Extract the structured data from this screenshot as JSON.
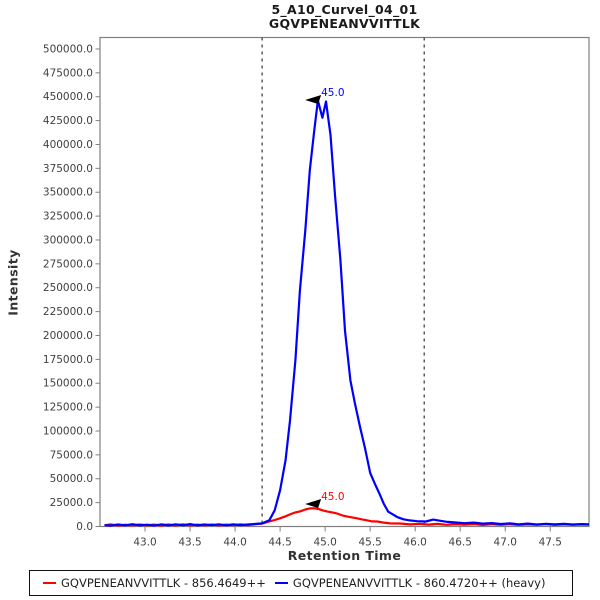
{
  "header": {
    "title_line1": "5_A10_Curvel_04_01",
    "title_line2": "GQVPENEANVVITTLK"
  },
  "chart_data": {
    "type": "line",
    "title": "5_A10_Curvel_04_01 — GQVPENEANVVITTLK",
    "xlabel": "Retention Time",
    "ylabel": "Intensity",
    "xlim": [
      42.5,
      47.93
    ],
    "ylim": [
      0,
      512000
    ],
    "grid": false,
    "legend_position": "bottom",
    "x_ticks": {
      "values": [
        43.0,
        43.5,
        44.0,
        44.5,
        45.0,
        45.5,
        46.0,
        46.5,
        47.0,
        47.5
      ],
      "labels": [
        "43.0",
        "43.5",
        "44.0",
        "44.5",
        "45.0",
        "45.5",
        "46.0",
        "46.5",
        "47.0",
        "47.5"
      ]
    },
    "y_ticks": {
      "values": [
        0,
        25000,
        50000,
        75000,
        100000,
        125000,
        150000,
        175000,
        200000,
        225000,
        250000,
        275000,
        300000,
        325000,
        350000,
        375000,
        400000,
        425000,
        450000,
        475000,
        500000
      ],
      "labels": [
        "0.0",
        "25000.0",
        "50000.0",
        "75000.0",
        "100000.0",
        "125000.0",
        "150000.0",
        "175000.0",
        "200000.0",
        "225000.0",
        "250000.0",
        "275000.0",
        "300000.0",
        "325000.0",
        "350000.0",
        "375000.0",
        "400000.0",
        "425000.0",
        "450000.0",
        "475000.0",
        "500000.0"
      ],
      "y_axis_max_label": "500000.0"
    },
    "integration_boundaries": [
      44.3,
      46.1
    ],
    "series": [
      {
        "name": "GQVPENEANVVITTLK - 856.4649++",
        "color": "#ff0000",
        "peak_label": {
          "text": "45.0",
          "rt": 45.0,
          "intensity": 32000
        },
        "points": [
          [
            42.55,
            1300
          ],
          [
            42.62,
            2200
          ],
          [
            42.7,
            1000
          ],
          [
            42.78,
            1900
          ],
          [
            42.86,
            1100
          ],
          [
            42.94,
            2100
          ],
          [
            43.02,
            1200
          ],
          [
            43.1,
            2000
          ],
          [
            43.18,
            1000
          ],
          [
            43.26,
            2100
          ],
          [
            43.34,
            1200
          ],
          [
            43.42,
            2200
          ],
          [
            43.5,
            1100
          ],
          [
            43.58,
            2000
          ],
          [
            43.66,
            1300
          ],
          [
            43.74,
            2100
          ],
          [
            43.82,
            1200
          ],
          [
            43.9,
            2000
          ],
          [
            43.98,
            1400
          ],
          [
            44.06,
            2200
          ],
          [
            44.14,
            1500
          ],
          [
            44.22,
            2400
          ],
          [
            44.3,
            3000
          ],
          [
            44.38,
            5200
          ],
          [
            44.44,
            6800
          ],
          [
            44.5,
            8600
          ],
          [
            44.56,
            10700
          ],
          [
            44.61,
            12700
          ],
          [
            44.67,
            14800
          ],
          [
            44.72,
            15800
          ],
          [
            44.78,
            17800
          ],
          [
            44.83,
            18900
          ],
          [
            44.89,
            19000
          ],
          [
            44.93,
            18200
          ],
          [
            44.97,
            17000
          ],
          [
            45.02,
            15800
          ],
          [
            45.08,
            14800
          ],
          [
            45.13,
            13700
          ],
          [
            45.19,
            11600
          ],
          [
            45.24,
            10600
          ],
          [
            45.3,
            9500
          ],
          [
            45.36,
            8500
          ],
          [
            45.41,
            7400
          ],
          [
            45.47,
            6400
          ],
          [
            45.52,
            5300
          ],
          [
            45.58,
            5200
          ],
          [
            45.64,
            4200
          ],
          [
            45.72,
            3200
          ],
          [
            45.83,
            3100
          ],
          [
            45.94,
            2200
          ],
          [
            46.05,
            2700
          ],
          [
            46.15,
            2000
          ],
          [
            46.25,
            2700
          ],
          [
            46.35,
            1800
          ],
          [
            46.45,
            2500
          ],
          [
            46.55,
            1900
          ],
          [
            46.65,
            2600
          ],
          [
            46.75,
            1700
          ],
          [
            46.85,
            2400
          ],
          [
            46.95,
            1800
          ],
          [
            47.05,
            2500
          ],
          [
            47.15,
            1700
          ],
          [
            47.25,
            2300
          ],
          [
            47.35,
            1800
          ],
          [
            47.45,
            2400
          ],
          [
            47.55,
            1700
          ],
          [
            47.65,
            2300
          ],
          [
            47.75,
            1800
          ],
          [
            47.85,
            2200
          ],
          [
            47.93,
            2000
          ]
        ]
      },
      {
        "name": "GQVPENEANVVITTLK - 860.4720++ (heavy)",
        "color": "#0000ff",
        "peak_label": {
          "text": "45.0",
          "rt": 45.0,
          "intensity": 455000
        },
        "points": [
          [
            42.55,
            1500
          ],
          [
            42.62,
            900
          ],
          [
            42.7,
            2100
          ],
          [
            42.78,
            1100
          ],
          [
            42.86,
            2400
          ],
          [
            42.94,
            1200
          ],
          [
            43.02,
            1900
          ],
          [
            43.1,
            1000
          ],
          [
            43.18,
            2200
          ],
          [
            43.26,
            1100
          ],
          [
            43.34,
            2300
          ],
          [
            43.42,
            1300
          ],
          [
            43.5,
            2500
          ],
          [
            43.58,
            1200
          ],
          [
            43.66,
            2100
          ],
          [
            43.74,
            1400
          ],
          [
            43.82,
            2300
          ],
          [
            43.9,
            1300
          ],
          [
            43.98,
            2200
          ],
          [
            44.06,
            1500
          ],
          [
            44.14,
            2100
          ],
          [
            44.22,
            2600
          ],
          [
            44.3,
            3200
          ],
          [
            44.38,
            6500
          ],
          [
            44.44,
            17000
          ],
          [
            44.5,
            38000
          ],
          [
            44.56,
            69000
          ],
          [
            44.61,
            111000
          ],
          [
            44.67,
            174000
          ],
          [
            44.72,
            247000
          ],
          [
            44.78,
            310000
          ],
          [
            44.83,
            373000
          ],
          [
            44.88,
            415000
          ],
          [
            44.92,
            446000
          ],
          [
            44.97,
            428000
          ],
          [
            45.01,
            445000
          ],
          [
            45.06,
            410000
          ],
          [
            45.11,
            347000
          ],
          [
            45.17,
            279000
          ],
          [
            45.22,
            205000
          ],
          [
            45.28,
            153000
          ],
          [
            45.33,
            129000
          ],
          [
            45.39,
            103000
          ],
          [
            45.44,
            83000
          ],
          [
            45.5,
            56000
          ],
          [
            45.56,
            43000
          ],
          [
            45.6,
            35000
          ],
          [
            45.65,
            24000
          ],
          [
            45.7,
            15500
          ],
          [
            45.75,
            12800
          ],
          [
            45.8,
            9800
          ],
          [
            45.87,
            7500
          ],
          [
            45.94,
            6400
          ],
          [
            46.02,
            5500
          ],
          [
            46.12,
            5200
          ],
          [
            46.2,
            7200
          ],
          [
            46.28,
            6000
          ],
          [
            46.36,
            4800
          ],
          [
            46.45,
            4200
          ],
          [
            46.55,
            3500
          ],
          [
            46.65,
            4100
          ],
          [
            46.75,
            3000
          ],
          [
            46.85,
            3600
          ],
          [
            46.95,
            2600
          ],
          [
            47.05,
            3200
          ],
          [
            47.15,
            2300
          ],
          [
            47.25,
            3000
          ],
          [
            47.35,
            2100
          ],
          [
            47.45,
            2800
          ],
          [
            47.55,
            2300
          ],
          [
            47.65,
            2700
          ],
          [
            47.75,
            2100
          ],
          [
            47.85,
            2500
          ],
          [
            47.93,
            2300
          ]
        ]
      }
    ]
  },
  "legend": {
    "items": [
      {
        "label": "GQVPENEANVVITTLK - 856.4649++",
        "color": "#ff0000"
      },
      {
        "label": "GQVPENEANVVITTLK - 860.4720++ (heavy)",
        "color": "#0000ff"
      }
    ]
  },
  "colors": {
    "frame": "#808080",
    "tick_label": "#404040",
    "boundary_line": "#333333",
    "annotation_arrow": "#000000"
  }
}
